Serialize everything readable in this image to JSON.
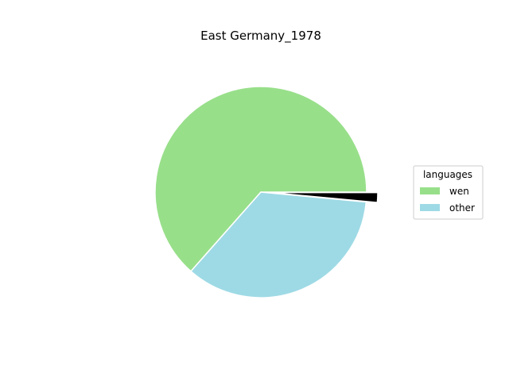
{
  "chart_data": {
    "type": "pie",
    "title": "East Germany_1978",
    "legend": {
      "title": "languages",
      "placement": "right"
    },
    "slices": [
      {
        "label": "wen",
        "value": 63.5,
        "color": "#98df8a"
      },
      {
        "label": "other",
        "value": 35.0,
        "color": "#9edae5"
      },
      {
        "label": "",
        "value": 1.5,
        "color": "#000000",
        "exploded": true
      }
    ]
  }
}
